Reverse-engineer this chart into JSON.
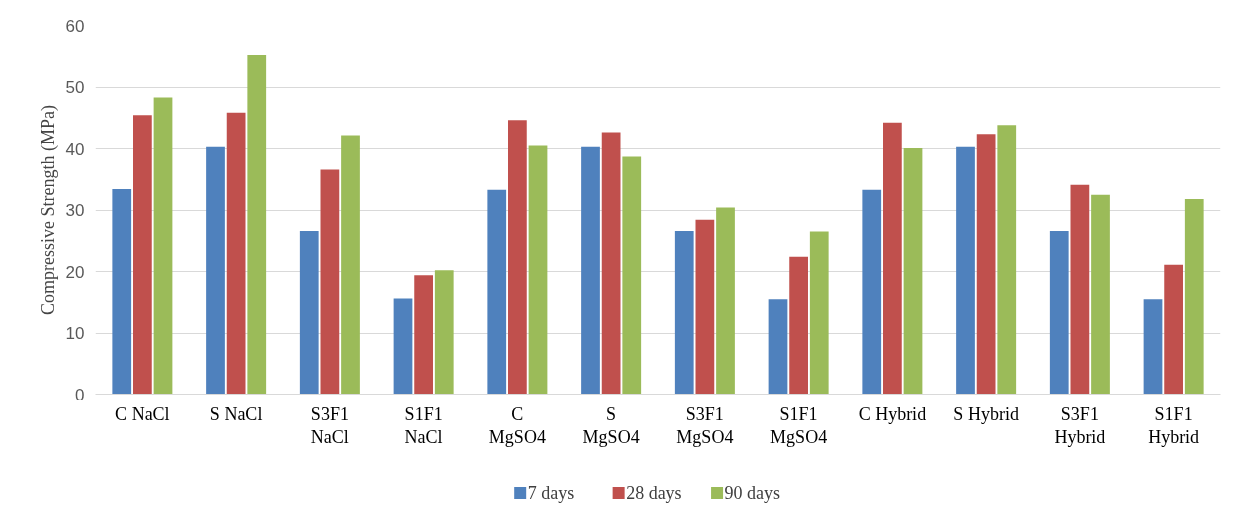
{
  "chart_data": {
    "type": "bar",
    "ylabel": "Compressive Strength (MPa)",
    "categories": [
      "C NaCl",
      "S NaCl",
      "S3F1 NaCl",
      "S1F1 NaCl",
      "C MgSO4",
      "S MgSO4",
      "S3F1 MgSO4",
      "S1F1 MgSO4",
      "C Hybrid",
      "S Hybrid",
      "S3F1 Hybrid",
      "S1F1 Hybrid"
    ],
    "series": [
      {
        "name": "7 days",
        "color": "#4f81bd",
        "values": [
          33.4,
          40.3,
          26.6,
          15.6,
          33.3,
          40.3,
          26.6,
          15.5,
          33.3,
          40.3,
          26.6,
          15.5
        ]
      },
      {
        "name": "28 days",
        "color": "#c0504d",
        "values": [
          45.4,
          45.8,
          36.6,
          19.4,
          44.6,
          42.6,
          28.4,
          22.4,
          44.2,
          42.3,
          34.1,
          21.1
        ]
      },
      {
        "name": "90 days",
        "color": "#9bbb59",
        "values": [
          48.3,
          55.2,
          42.1,
          20.2,
          40.5,
          38.7,
          30.4,
          26.5,
          40.1,
          43.8,
          32.5,
          31.8
        ]
      }
    ],
    "ylim": [
      0,
      60
    ],
    "yticks": [
      0,
      10,
      20,
      30,
      40,
      50,
      60
    ],
    "grid": "y",
    "legend": "bottom"
  }
}
